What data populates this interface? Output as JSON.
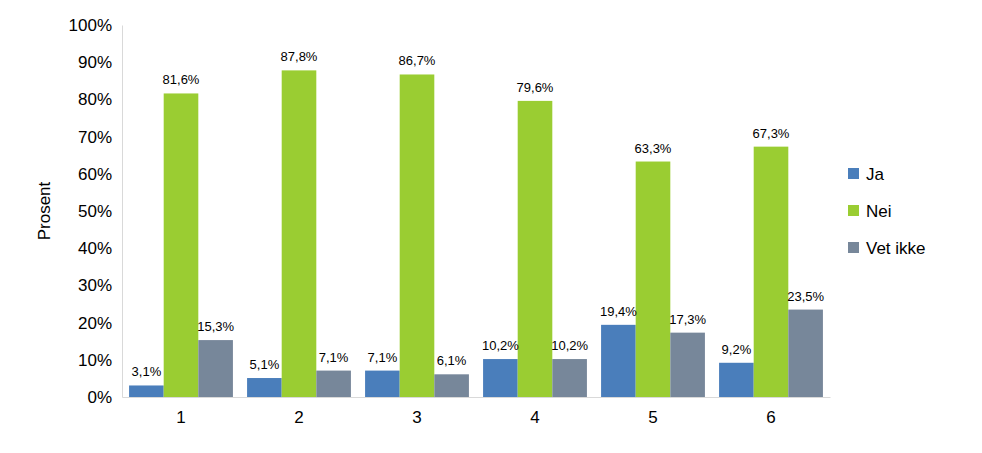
{
  "chart_data": {
    "type": "bar",
    "y_label": "Prosent",
    "categories": [
      "1",
      "2",
      "3",
      "4",
      "5",
      "6"
    ],
    "series": [
      {
        "name": "Ja",
        "color": "#4a7ebb",
        "values": [
          3.1,
          5.1,
          7.1,
          10.2,
          19.4,
          9.2
        ],
        "value_labels": [
          "3,1%",
          "5,1%",
          "7,1%",
          "10,2%",
          "19,4%",
          "9,2%"
        ]
      },
      {
        "name": "Nei",
        "color": "#9acd32",
        "values": [
          81.6,
          87.8,
          86.7,
          79.6,
          63.3,
          67.3
        ],
        "value_labels": [
          "81,6%",
          "87,8%",
          "86,7%",
          "79,6%",
          "63,3%",
          "67,3%"
        ]
      },
      {
        "name": "Vet ikke",
        "color": "#77879a",
        "values": [
          15.3,
          7.1,
          6.1,
          10.2,
          17.3,
          23.5
        ],
        "value_labels": [
          "15,3%",
          "7,1%",
          "6,1%",
          "10,2%",
          "17,3%",
          "23,5%"
        ]
      }
    ],
    "ylim": [
      0,
      100
    ],
    "yticks": [
      {
        "value": 0,
        "label": "0%"
      },
      {
        "value": 10,
        "label": "10%"
      },
      {
        "value": 20,
        "label": "20%"
      },
      {
        "value": 30,
        "label": "30%"
      },
      {
        "value": 40,
        "label": "40%"
      },
      {
        "value": 50,
        "label": "50%"
      },
      {
        "value": 60,
        "label": "60%"
      },
      {
        "value": 70,
        "label": "70%"
      },
      {
        "value": 80,
        "label": "80%"
      },
      {
        "value": 90,
        "label": "90%"
      },
      {
        "value": 100,
        "label": "100%"
      }
    ],
    "grid": false,
    "legend": "right",
    "data_labels": true
  }
}
